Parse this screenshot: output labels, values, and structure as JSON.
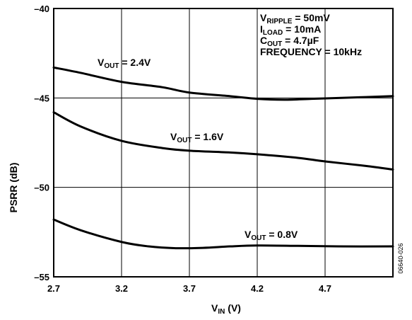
{
  "chart_data": {
    "type": "line",
    "xlabel": {
      "main": "V",
      "sub": "IN",
      "unit": " (V)"
    },
    "ylabel": "PSRR (dB)",
    "xlim": [
      2.7,
      5.2
    ],
    "ylim": [
      -55,
      -40
    ],
    "x_ticks": [
      2.7,
      3.2,
      3.7,
      4.2,
      4.7
    ],
    "x_tick_labels": [
      "2.7",
      "3.2",
      "3.7",
      "4.2",
      "4.7"
    ],
    "y_ticks": [
      -40,
      -45,
      -50,
      -55
    ],
    "y_tick_labels": [
      "–40",
      "–45",
      "–50",
      "–55"
    ],
    "grid": true,
    "conditions": [
      {
        "main": "V",
        "sub": "RIPPLE",
        "rest": " = 50mV"
      },
      {
        "main": "I",
        "sub": "LOAD",
        "rest": " = 10mA"
      },
      {
        "main": "C",
        "sub": "OUT",
        "rest": " = 4.7µF"
      },
      {
        "main": "FREQUENCY = 10kHz",
        "sub": "",
        "rest": ""
      }
    ],
    "figure_id": "06640-026",
    "series": [
      {
        "label": {
          "main": "V",
          "sub": "OUT",
          "rest": " = 2.4V"
        },
        "x": [
          2.7,
          2.9,
          3.2,
          3.5,
          3.7,
          4.0,
          4.2,
          4.4,
          4.6,
          4.8,
          5.0,
          5.2
        ],
        "y": [
          -43.3,
          -43.6,
          -44.1,
          -44.4,
          -44.7,
          -44.9,
          -45.05,
          -45.1,
          -45.05,
          -45.0,
          -44.95,
          -44.9
        ]
      },
      {
        "label": {
          "main": "V",
          "sub": "OUT",
          "rest": " = 1.6V"
        },
        "x": [
          2.7,
          2.9,
          3.2,
          3.5,
          3.7,
          4.0,
          4.2,
          4.5,
          4.7,
          5.0,
          5.2
        ],
        "y": [
          -45.8,
          -46.6,
          -47.4,
          -47.8,
          -47.95,
          -48.05,
          -48.15,
          -48.35,
          -48.55,
          -48.8,
          -49.0
        ]
      },
      {
        "label": {
          "main": "V",
          "sub": "OUT",
          "rest": " = 0.8V"
        },
        "x": [
          2.7,
          2.9,
          3.2,
          3.4,
          3.6,
          3.8,
          4.0,
          4.2,
          4.5,
          4.8,
          5.2
        ],
        "y": [
          -51.8,
          -52.4,
          -53.05,
          -53.3,
          -53.4,
          -53.38,
          -53.3,
          -53.25,
          -53.27,
          -53.3,
          -53.3
        ]
      }
    ]
  }
}
